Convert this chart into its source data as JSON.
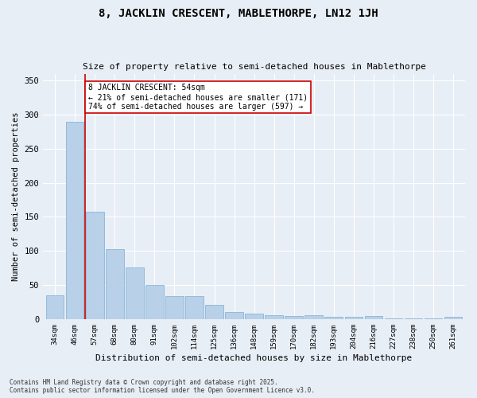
{
  "title": "8, JACKLIN CRESCENT, MABLETHORPE, LN12 1JH",
  "subtitle": "Size of property relative to semi-detached houses in Mablethorpe",
  "xlabel": "Distribution of semi-detached houses by size in Mablethorpe",
  "ylabel": "Number of semi-detached properties",
  "bar_color": "#b8d0e8",
  "bar_edge_color": "#7aafd4",
  "annotation_line_color": "#cc0000",
  "annotation_box_color": "#cc0000",
  "annotation_text": "8 JACKLIN CRESCENT: 54sqm\n← 21% of semi-detached houses are smaller (171)\n74% of semi-detached houses are larger (597) →",
  "property_size": 54,
  "categories": [
    "34sqm",
    "46sqm",
    "57sqm",
    "68sqm",
    "80sqm",
    "91sqm",
    "102sqm",
    "114sqm",
    "125sqm",
    "136sqm",
    "148sqm",
    "159sqm",
    "170sqm",
    "182sqm",
    "193sqm",
    "204sqm",
    "216sqm",
    "227sqm",
    "238sqm",
    "250sqm",
    "261sqm"
  ],
  "values": [
    35,
    290,
    158,
    103,
    76,
    50,
    34,
    34,
    21,
    11,
    8,
    6,
    5,
    6,
    3,
    3,
    5,
    1,
    1,
    1,
    3
  ],
  "ylim": [
    0,
    360
  ],
  "yticks": [
    0,
    50,
    100,
    150,
    200,
    250,
    300,
    350
  ],
  "property_bar_index": 1,
  "footer": "Contains HM Land Registry data © Crown copyright and database right 2025.\nContains public sector information licensed under the Open Government Licence v3.0.",
  "background_color": "#e8eef5",
  "plot_bg_color": "#e8eef5",
  "figsize": [
    6.0,
    5.0
  ],
  "dpi": 100
}
